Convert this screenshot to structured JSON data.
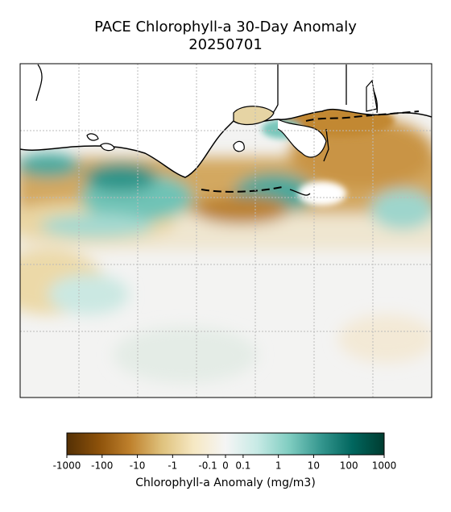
{
  "title": "PACE Chlorophyll-a 30-Day Anomaly",
  "subtitle": "20250701",
  "colorbar": {
    "label": "Chlorophyll-a Anomaly (mg/m3)",
    "scale": "symlog",
    "lim": [
      -1000,
      1000
    ],
    "ticks": [
      -1000,
      -100,
      -10,
      -1,
      -0.1,
      0,
      0.1,
      1,
      10,
      100,
      1000
    ],
    "colors": [
      "#543005",
      "#8c510a",
      "#bf812d",
      "#dfc27d",
      "#f6e8c3",
      "#f5f5f5",
      "#c7eae5",
      "#80cdc1",
      "#35978f",
      "#01665e",
      "#003c30"
    ]
  }
}
